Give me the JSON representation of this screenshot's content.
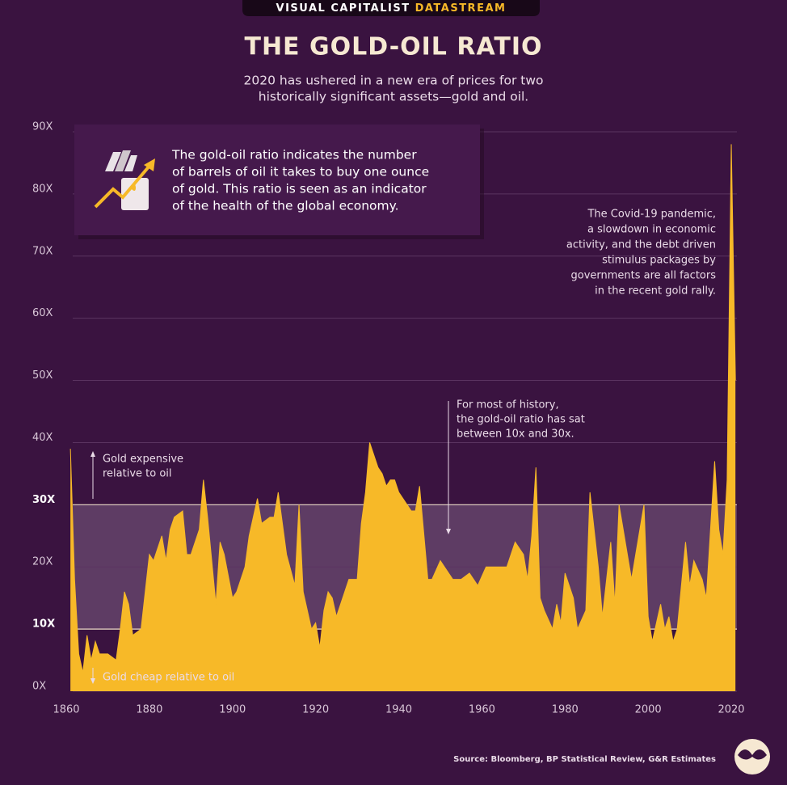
{
  "brand": {
    "name": "VISUAL CAPITALIST",
    "product": "DATASTREAM"
  },
  "chart_data": {
    "type": "area",
    "title": "THE GOLD-OIL RATIO",
    "subtitle": [
      "2020 has ushered in a new era of prices for two",
      "historically significant assets—gold and oil."
    ],
    "info_box": [
      "The gold-oil ratio indicates the number",
      "of barrels of oil it takes to buy one ounce",
      "of gold. This ratio is seen as an indicator",
      "of the health of the global economy."
    ],
    "annotations": [
      {
        "lines": [
          "The Covid-19 pandemic,",
          "a slowdown in economic",
          "activity, and the debt driven",
          "stimulus packages by",
          "governments are all factors",
          "in the recent gold rally."
        ]
      },
      {
        "lines": [
          "For most of history,",
          "the gold-oil ratio has sat",
          "between 10x and 30x."
        ]
      },
      {
        "lines": [
          "Gold expensive",
          "relative to oil"
        ]
      },
      {
        "lines": [
          "Gold cheap relative to oil"
        ]
      }
    ],
    "source": "Source: Bloomberg, BP Statistical Review, G&R Estimates",
    "color": "#f7b928",
    "highlight_band": [
      10,
      30
    ],
    "grid": true,
    "x": [
      1861,
      1862,
      1863,
      1864,
      1865,
      1866,
      1867,
      1868,
      1870,
      1872,
      1873,
      1874,
      1875,
      1876,
      1878,
      1879,
      1880,
      1881,
      1883,
      1884,
      1885,
      1886,
      1888,
      1889,
      1890,
      1892,
      1893,
      1894,
      1896,
      1897,
      1898,
      1900,
      1901,
      1903,
      1904,
      1906,
      1907,
      1909,
      1910,
      1911,
      1912,
      1913,
      1915,
      1916,
      1917,
      1918,
      1919,
      1920,
      1921,
      1922,
      1923,
      1924,
      1925,
      1927,
      1928,
      1930,
      1931,
      1932,
      1933,
      1935,
      1936,
      1937,
      1938,
      1939,
      1940,
      1942,
      1943,
      1944,
      1945,
      1947,
      1948,
      1950,
      1951,
      1953,
      1955,
      1957,
      1959,
      1961,
      1963,
      1966,
      1968,
      1970,
      1971,
      1972,
      1973,
      1974,
      1975,
      1977,
      1978,
      1979,
      1980,
      1982,
      1983,
      1985,
      1986,
      1988,
      1989,
      1991,
      1992,
      1993,
      1995,
      1996,
      1998,
      1999,
      2000,
      2001,
      2003,
      2004,
      2005,
      2006,
      2007,
      2009,
      2010,
      2011,
      2013,
      2014,
      2016,
      2017,
      2018,
      2019,
      2020,
      2021
    ],
    "values": [
      39,
      18,
      6,
      3,
      9,
      5,
      8,
      6,
      6,
      5,
      10,
      16,
      14,
      9,
      10,
      16,
      22,
      21,
      25,
      21,
      26,
      28,
      29,
      22,
      22,
      26,
      34,
      28,
      14,
      24,
      22,
      15,
      16,
      20,
      25,
      31,
      27,
      28,
      28,
      32,
      27,
      22,
      17,
      30,
      16,
      13,
      10,
      11,
      7,
      13,
      16,
      15,
      12,
      16,
      18,
      18,
      27,
      32,
      40,
      36,
      35,
      33,
      34,
      34,
      32,
      30,
      29,
      29,
      33,
      18,
      18,
      21,
      20,
      18,
      18,
      19,
      17,
      20,
      20,
      20,
      24,
      22,
      18,
      25,
      36,
      15,
      13,
      10,
      14,
      11,
      19,
      15,
      10,
      13,
      32,
      20,
      12,
      24,
      14,
      30,
      22,
      18,
      26,
      30,
      12,
      8,
      14,
      10,
      12,
      8,
      10,
      24,
      17,
      21,
      18,
      15,
      37,
      26,
      22,
      34,
      88,
      50
    ],
    "xlim": [
      1860,
      2022
    ],
    "xticks": [
      1860,
      1880,
      1900,
      1920,
      1940,
      1960,
      1980,
      2000,
      2020
    ],
    "ylim": [
      0,
      90
    ],
    "yticks": [
      {
        "value": 0,
        "label": "0X"
      },
      {
        "value": 10,
        "label": "10X"
      },
      {
        "value": 20,
        "label": "20X"
      },
      {
        "value": 30,
        "label": "30X"
      },
      {
        "value": 40,
        "label": "40X"
      },
      {
        "value": 50,
        "label": "50X"
      },
      {
        "value": 60,
        "label": "60X"
      },
      {
        "value": 70,
        "label": "70X"
      },
      {
        "value": 80,
        "label": "80X"
      },
      {
        "value": 90,
        "label": "90X"
      }
    ]
  }
}
